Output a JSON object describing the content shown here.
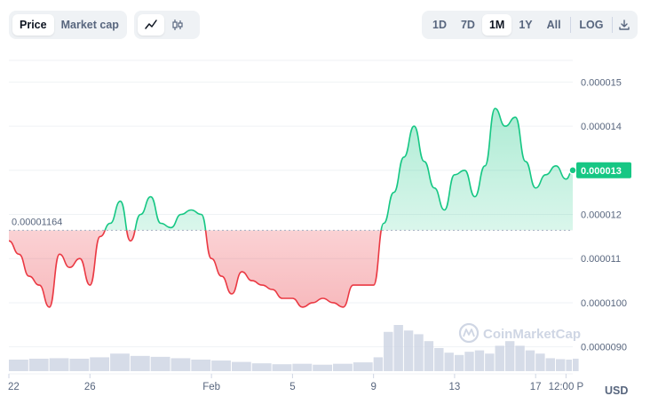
{
  "toolbar": {
    "metric_tabs": [
      {
        "label": "Price",
        "active": true
      },
      {
        "label": "Market cap",
        "active": false
      }
    ],
    "chart_type_icons": [
      {
        "icon": "line-chart-icon",
        "active": true
      },
      {
        "icon": "candlestick-chart-icon",
        "active": false
      }
    ],
    "ranges": [
      {
        "label": "1D",
        "active": false
      },
      {
        "label": "7D",
        "active": false
      },
      {
        "label": "1M",
        "active": true
      },
      {
        "label": "1Y",
        "active": false
      },
      {
        "label": "All",
        "active": false
      }
    ],
    "log_label": "LOG",
    "download_icon": "download-icon"
  },
  "currency": "USD",
  "watermark": "CoinMarketCap",
  "colors": {
    "up": "#16c784",
    "down": "#ea3943",
    "volume": "#cfd6e4",
    "badge": "#16c784"
  },
  "chart_data": {
    "type": "area",
    "baseline": {
      "value": 1.164e-05,
      "label": "0.00001164"
    },
    "current": {
      "value": 1.3e-05,
      "label": "0.000013"
    },
    "ylim": [
      8.45e-06,
      1.549e-05
    ],
    "y_ticks": [
      {
        "value": 9e-06,
        "label": "0.0000090"
      },
      {
        "value": 1e-05,
        "label": "0.0000100"
      },
      {
        "value": 1.1e-05,
        "label": "0.000011"
      },
      {
        "value": 1.2e-05,
        "label": "0.000012"
      },
      {
        "value": 1.3e-05,
        "label": "0.000013"
      },
      {
        "value": 1.4e-05,
        "label": "0.000014"
      },
      {
        "value": 1.5e-05,
        "label": "0.000015"
      }
    ],
    "xlim": [
      "2024-01-22T00:00",
      "2024-02-18T20:00"
    ],
    "x_ticks": [
      {
        "value": "2024-01-22T00:00",
        "label": "22"
      },
      {
        "value": "2024-01-26T00:00",
        "label": "26"
      },
      {
        "value": "2024-02-01T00:00",
        "label": "Feb"
      },
      {
        "value": "2024-02-05T00:00",
        "label": "5"
      },
      {
        "value": "2024-02-09T00:00",
        "label": "9"
      },
      {
        "value": "2024-02-13T00:00",
        "label": "13"
      },
      {
        "value": "2024-02-17T00:00",
        "label": "17"
      },
      {
        "value": "2024-02-18T12:00",
        "label": "12:00 P"
      }
    ],
    "price": [
      [
        "2024-01-22T00:00",
        1.14e-05
      ],
      [
        "2024-01-22T12:00",
        1.11e-05
      ],
      [
        "2024-01-23T00:00",
        1.06e-05
      ],
      [
        "2024-01-23T12:00",
        1.04e-05
      ],
      [
        "2024-01-24T00:00",
        9.9e-06
      ],
      [
        "2024-01-24T12:00",
        1.11e-05
      ],
      [
        "2024-01-25T00:00",
        1.08e-05
      ],
      [
        "2024-01-25T12:00",
        1.1e-05
      ],
      [
        "2024-01-26T00:00",
        1.04e-05
      ],
      [
        "2024-01-26T12:00",
        1.15e-05
      ],
      [
        "2024-01-27T00:00",
        1.18e-05
      ],
      [
        "2024-01-27T12:00",
        1.23e-05
      ],
      [
        "2024-01-28T00:00",
        1.14e-05
      ],
      [
        "2024-01-28T12:00",
        1.2e-05
      ],
      [
        "2024-01-29T00:00",
        1.24e-05
      ],
      [
        "2024-01-29T12:00",
        1.18e-05
      ],
      [
        "2024-01-30T00:00",
        1.17e-05
      ],
      [
        "2024-01-30T12:00",
        1.2e-05
      ],
      [
        "2024-01-31T00:00",
        1.21e-05
      ],
      [
        "2024-01-31T12:00",
        1.2e-05
      ],
      [
        "2024-02-01T00:00",
        1.1e-05
      ],
      [
        "2024-02-01T12:00",
        1.06e-05
      ],
      [
        "2024-02-02T00:00",
        1.02e-05
      ],
      [
        "2024-02-02T12:00",
        1.07e-05
      ],
      [
        "2024-02-03T00:00",
        1.05e-05
      ],
      [
        "2024-02-03T12:00",
        1.04e-05
      ],
      [
        "2024-02-04T00:00",
        1.03e-05
      ],
      [
        "2024-02-04T12:00",
        1.01e-05
      ],
      [
        "2024-02-05T00:00",
        1.01e-05
      ],
      [
        "2024-02-05T12:00",
        9.9e-06
      ],
      [
        "2024-02-06T00:00",
        1e-05
      ],
      [
        "2024-02-06T12:00",
        1.01e-05
      ],
      [
        "2024-02-07T00:00",
        1e-05
      ],
      [
        "2024-02-07T12:00",
        9.9e-06
      ],
      [
        "2024-02-08T00:00",
        1.04e-05
      ],
      [
        "2024-02-08T12:00",
        1.04e-05
      ],
      [
        "2024-02-09T00:00",
        1.04e-05
      ],
      [
        "2024-02-09T12:00",
        1.18e-05
      ],
      [
        "2024-02-10T00:00",
        1.25e-05
      ],
      [
        "2024-02-10T12:00",
        1.33e-05
      ],
      [
        "2024-02-11T00:00",
        1.4e-05
      ],
      [
        "2024-02-11T12:00",
        1.32e-05
      ],
      [
        "2024-02-12T00:00",
        1.26e-05
      ],
      [
        "2024-02-12T12:00",
        1.21e-05
      ],
      [
        "2024-02-13T00:00",
        1.29e-05
      ],
      [
        "2024-02-13T12:00",
        1.3e-05
      ],
      [
        "2024-02-14T00:00",
        1.24e-05
      ],
      [
        "2024-02-14T12:00",
        1.31e-05
      ],
      [
        "2024-02-15T00:00",
        1.44e-05
      ],
      [
        "2024-02-15T12:00",
        1.4e-05
      ],
      [
        "2024-02-16T00:00",
        1.42e-05
      ],
      [
        "2024-02-16T12:00",
        1.32e-05
      ],
      [
        "2024-02-17T00:00",
        1.26e-05
      ],
      [
        "2024-02-17T12:00",
        1.29e-05
      ],
      [
        "2024-02-18T00:00",
        1.31e-05
      ],
      [
        "2024-02-18T12:00",
        1.28e-05
      ],
      [
        "2024-02-18T20:00",
        1.3e-05
      ]
    ],
    "volume_relative": [
      [
        "2024-01-22T00:00",
        0.25
      ],
      [
        "2024-01-23T00:00",
        0.27
      ],
      [
        "2024-01-24T00:00",
        0.28
      ],
      [
        "2024-01-25T00:00",
        0.27
      ],
      [
        "2024-01-26T00:00",
        0.3
      ],
      [
        "2024-01-27T00:00",
        0.38
      ],
      [
        "2024-01-28T00:00",
        0.33
      ],
      [
        "2024-01-29T00:00",
        0.31
      ],
      [
        "2024-01-30T00:00",
        0.28
      ],
      [
        "2024-01-31T00:00",
        0.25
      ],
      [
        "2024-02-01T00:00",
        0.23
      ],
      [
        "2024-02-02T00:00",
        0.2
      ],
      [
        "2024-02-03T00:00",
        0.17
      ],
      [
        "2024-02-04T00:00",
        0.15
      ],
      [
        "2024-02-05T00:00",
        0.16
      ],
      [
        "2024-02-06T00:00",
        0.14
      ],
      [
        "2024-02-07T00:00",
        0.16
      ],
      [
        "2024-02-08T00:00",
        0.19
      ],
      [
        "2024-02-09T00:00",
        0.3
      ],
      [
        "2024-02-09T12:00",
        0.85
      ],
      [
        "2024-02-10T00:00",
        1.0
      ],
      [
        "2024-02-10T12:00",
        0.88
      ],
      [
        "2024-02-11T00:00",
        0.8
      ],
      [
        "2024-02-11T12:00",
        0.65
      ],
      [
        "2024-02-12T00:00",
        0.5
      ],
      [
        "2024-02-12T12:00",
        0.4
      ],
      [
        "2024-02-13T00:00",
        0.35
      ],
      [
        "2024-02-13T12:00",
        0.42
      ],
      [
        "2024-02-14T00:00",
        0.45
      ],
      [
        "2024-02-14T12:00",
        0.38
      ],
      [
        "2024-02-15T00:00",
        0.55
      ],
      [
        "2024-02-15T12:00",
        0.65
      ],
      [
        "2024-02-16T00:00",
        0.55
      ],
      [
        "2024-02-16T12:00",
        0.45
      ],
      [
        "2024-02-17T00:00",
        0.38
      ],
      [
        "2024-02-17T12:00",
        0.28
      ],
      [
        "2024-02-18T00:00",
        0.26
      ],
      [
        "2024-02-18T12:00",
        0.25
      ],
      [
        "2024-02-18T20:00",
        0.27
      ]
    ]
  }
}
